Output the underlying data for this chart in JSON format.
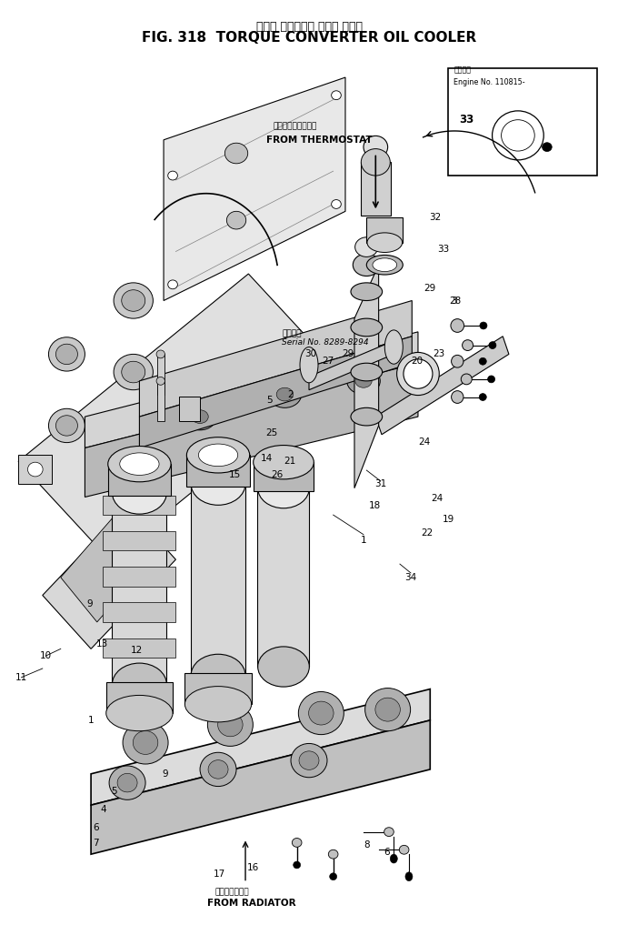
{
  "title_japanese": "トルク コンバータ オイル クーラ",
  "title_english": "FIG. 318  TORQUE CONVERTER OIL COOLER",
  "bg_color": "#ffffff",
  "line_color": "#000000",
  "text_color": "#000000",
  "fig_width": 6.8,
  "fig_height": 10.28,
  "dpi": 100,
  "inset_label": "Engine No. 110815-",
  "inset_label_jp": "適用号数",
  "from_thermostat_jp": "サーモスタットより",
  "from_thermostat_en": "FROM THERMOSTAT",
  "from_radiator_jp": "ラジエータより",
  "from_radiator_en": "FROM RADIATOR",
  "serial_no": "Serial No. 8289-8294",
  "serial_jp": "適用号数"
}
